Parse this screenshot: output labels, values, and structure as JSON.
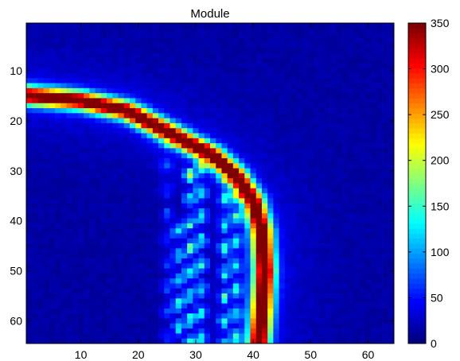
{
  "chart_data": {
    "type": "heatmap",
    "title": "Module",
    "xlabel": "",
    "ylabel": "",
    "grid": "off",
    "colormap": "jet",
    "x_range": [
      1,
      64
    ],
    "y_range": [
      1,
      64
    ],
    "y_direction": "top-to-bottom",
    "x_ticks": [
      10,
      20,
      30,
      40,
      50,
      60
    ],
    "x_tick_labels": [
      "10",
      "20",
      "30",
      "40",
      "50",
      "60"
    ],
    "y_ticks": [
      10,
      20,
      30,
      40,
      50,
      60
    ],
    "y_tick_labels": [
      "10",
      "20",
      "30",
      "40",
      "50",
      "60"
    ],
    "colorbar": {
      "range": [
        0,
        350
      ],
      "ticks": [
        0,
        50,
        100,
        150,
        200,
        250,
        300,
        350
      ],
      "tick_labels": [
        "0",
        "50",
        "100",
        "150",
        "200",
        "250",
        "300",
        "350"
      ],
      "placement": "right"
    },
    "features": {
      "ridge_path": [
        [
          1,
          15
        ],
        [
          10,
          16
        ],
        [
          18,
          18
        ],
        [
          23,
          21
        ],
        [
          28,
          24
        ],
        [
          33,
          27
        ],
        [
          37,
          31
        ],
        [
          40,
          36
        ],
        [
          41.5,
          42
        ],
        [
          42,
          50
        ],
        [
          41.5,
          58
        ],
        [
          41,
          64
        ]
      ],
      "ridge_peak": 350,
      "ridge_width": 1.3,
      "speckle_columns": [
        [
          27,
          40,
          64,
          110
        ],
        [
          29,
          30,
          64,
          130
        ],
        [
          31,
          25,
          64,
          115
        ],
        [
          35,
          32,
          64,
          110
        ],
        [
          37,
          35,
          64,
          100
        ],
        [
          25,
          25,
          64,
          55
        ]
      ],
      "background_level": 12
    }
  }
}
